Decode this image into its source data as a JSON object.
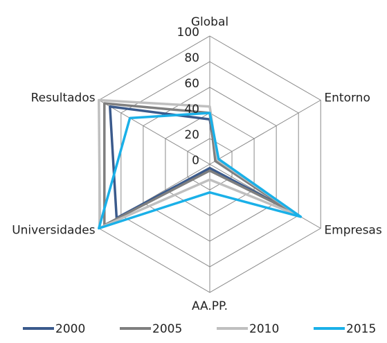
{
  "chart_data": {
    "type": "radar",
    "categories": [
      "Global",
      "Entorno",
      "Empresas",
      "AA.PP.",
      "Universidades",
      "Resultados"
    ],
    "series": [
      {
        "name": "2000",
        "color": "#3a5a8c",
        "values": [
          35,
          6,
          72,
          3,
          84,
          90
        ]
      },
      {
        "name": "2005",
        "color": "#7f7f7f",
        "values": [
          40,
          5,
          72,
          5,
          95,
          95
        ]
      },
      {
        "name": "2010",
        "color": "#bfbfbf",
        "values": [
          45,
          7,
          80,
          12,
          99,
          100
        ]
      },
      {
        "name": "2015",
        "color": "#1ab0e8",
        "values": [
          40,
          8,
          82,
          22,
          100,
          72
        ]
      }
    ],
    "ylim": [
      0,
      100
    ],
    "yticks": [
      0,
      20,
      40,
      60,
      80,
      100
    ],
    "grid": true,
    "legend": "bottom"
  }
}
